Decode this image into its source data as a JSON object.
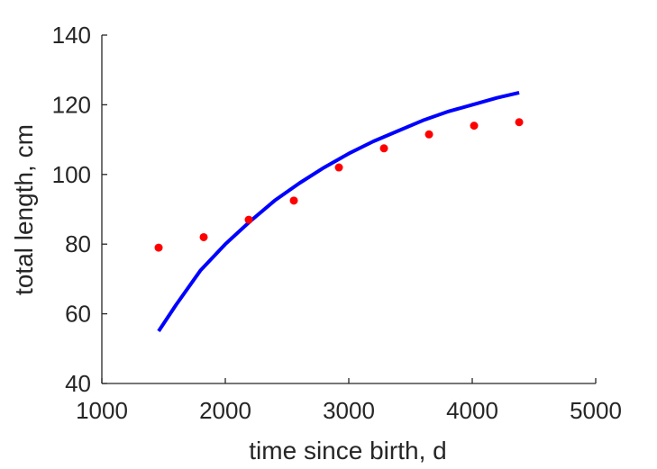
{
  "chart_data": {
    "type": "scatter",
    "title": "",
    "xlabel": "time since birth, d",
    "ylabel": "total length, cm",
    "xlim": [
      1000,
      5000
    ],
    "ylim": [
      40,
      140
    ],
    "xticks": [
      1000,
      2000,
      3000,
      4000,
      5000
    ],
    "yticks": [
      40,
      60,
      80,
      100,
      120,
      140
    ],
    "grid": false,
    "legend": "none",
    "series": [
      {
        "kind": "points",
        "color": "#ff0000",
        "x": [
          1460,
          1825,
          2190,
          2555,
          2920,
          3285,
          3650,
          4015,
          4380
        ],
        "y": [
          79,
          82,
          87,
          92.5,
          102,
          107.5,
          111.5,
          114,
          115
        ]
      },
      {
        "kind": "line",
        "color": "#0000ff",
        "x": [
          1460,
          1600,
          1800,
          2000,
          2200,
          2400,
          2600,
          2800,
          3000,
          3200,
          3400,
          3600,
          3800,
          4000,
          4200,
          4380
        ],
        "y": [
          55,
          62.5,
          72.5,
          80,
          86.5,
          92.5,
          97.5,
          102,
          106,
          109.5,
          112.5,
          115.5,
          118,
          120,
          122,
          123.5
        ]
      }
    ]
  }
}
